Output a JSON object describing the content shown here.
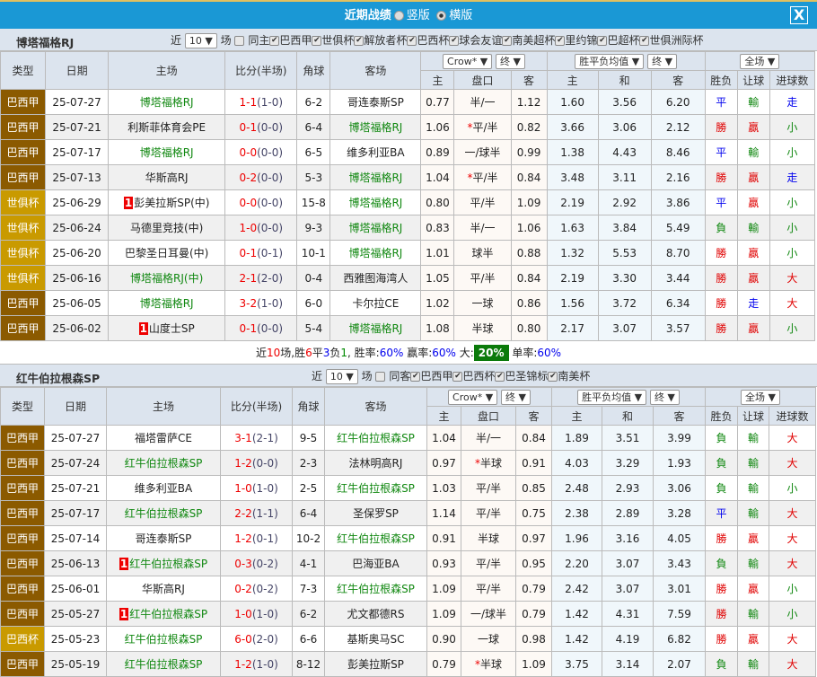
{
  "window": {
    "title": "近期战绩",
    "radio1": "竖版",
    "radio2": "横版",
    "close": "X"
  },
  "colors": {
    "bar": "#1a98d5",
    "league_a": "#8b5a00",
    "league_b": "#c99a00",
    "team": "#118811",
    "win": "#e00000",
    "draw": "#0000ee",
    "lose": "#118811"
  },
  "headers": {
    "type": "类型",
    "date": "日期",
    "home": "主场",
    "score": "比分(半场)",
    "corner": "角球",
    "away": "客场",
    "crow": "Crow*",
    "end": "终",
    "avg": "胜平负均值",
    "full": "全场",
    "h": "主",
    "line": "盘口",
    "a": "客",
    "d": "和",
    "wl": "胜负",
    "hc": "让球",
    "ou": "进球数"
  },
  "sections": [
    {
      "team": "博塔福格RJ",
      "near": "近",
      "count": "10",
      "unit": "场",
      "same": "同主",
      "leagues": [
        "巴西甲",
        "世俱杯",
        "解放者杯",
        "巴西杯",
        "球会友谊",
        "南美超杯",
        "里约锦",
        "巴超杯",
        "世俱洲际杯"
      ],
      "rows": [
        {
          "type": "巴西甲",
          "lt": "a",
          "date": "25-07-27",
          "home": "博塔福格RJ",
          "hh": true,
          "score": "1-1",
          "half": "(1-0)",
          "corner": "6-2",
          "away": "哥连泰斯SP",
          "ah": false,
          "o1": "0.77",
          "line": "半/一",
          "o2": "1.12",
          "e1": "1.60",
          "e2": "3.56",
          "e3": "6.20",
          "wl": "平",
          "hc": "輸",
          "ou": "走"
        },
        {
          "type": "巴西甲",
          "lt": "a",
          "date": "25-07-21",
          "home": "利斯菲体育会PE",
          "hh": false,
          "score": "0-1",
          "half": "(0-0)",
          "corner": "6-4",
          "away": "博塔福格RJ",
          "ah": true,
          "o1": "1.06",
          "line": "平/半",
          "star": true,
          "o2": "0.82",
          "e1": "3.66",
          "e2": "3.06",
          "e3": "2.12",
          "wl": "勝",
          "hc": "贏",
          "ou": "小"
        },
        {
          "type": "巴西甲",
          "lt": "a",
          "date": "25-07-17",
          "home": "博塔福格RJ",
          "hh": true,
          "score": "0-0",
          "half": "(0-0)",
          "corner": "6-5",
          "away": "维多利亚BA",
          "ah": false,
          "o1": "0.89",
          "line": "一/球半",
          "o2": "0.99",
          "e1": "1.38",
          "e2": "4.43",
          "e3": "8.46",
          "wl": "平",
          "hc": "輸",
          "ou": "小"
        },
        {
          "type": "巴西甲",
          "lt": "a",
          "date": "25-07-13",
          "home": "华斯高RJ",
          "hh": false,
          "score": "0-2",
          "half": "(0-0)",
          "corner": "5-3",
          "away": "博塔福格RJ",
          "ah": true,
          "o1": "1.04",
          "line": "平/半",
          "star": true,
          "o2": "0.84",
          "e1": "3.48",
          "e2": "3.11",
          "e3": "2.16",
          "wl": "勝",
          "hc": "贏",
          "ou": "走"
        },
        {
          "type": "世俱杯",
          "lt": "b",
          "date": "25-06-29",
          "home": "彭美拉斯SP(中)",
          "red": "1",
          "hh": false,
          "score": "0-0",
          "half": "(0-0)",
          "corner": "15-8",
          "away": "博塔福格RJ",
          "ah": true,
          "o1": "0.80",
          "line": "平/半",
          "o2": "1.09",
          "e1": "2.19",
          "e2": "2.92",
          "e3": "3.86",
          "wl": "平",
          "hc": "贏",
          "ou": "小"
        },
        {
          "type": "世俱杯",
          "lt": "b",
          "date": "25-06-24",
          "home": "马德里竞技(中)",
          "hh": false,
          "score": "1-0",
          "half": "(0-0)",
          "corner": "9-3",
          "away": "博塔福格RJ",
          "ah": true,
          "o1": "0.83",
          "line": "半/一",
          "o2": "1.06",
          "e1": "1.63",
          "e2": "3.84",
          "e3": "5.49",
          "wl": "負",
          "hc": "輸",
          "ou": "小"
        },
        {
          "type": "世俱杯",
          "lt": "b",
          "date": "25-06-20",
          "home": "巴黎圣日耳曼(中)",
          "hh": false,
          "score": "0-1",
          "half": "(0-1)",
          "corner": "10-1",
          "away": "博塔福格RJ",
          "ah": true,
          "o1": "1.01",
          "line": "球半",
          "o2": "0.88",
          "e1": "1.32",
          "e2": "5.53",
          "e3": "8.70",
          "wl": "勝",
          "hc": "贏",
          "ou": "小"
        },
        {
          "type": "世俱杯",
          "lt": "b",
          "date": "25-06-16",
          "home": "博塔福格RJ(中)",
          "hh": true,
          "score": "2-1",
          "half": "(2-0)",
          "corner": "0-4",
          "away": "西雅图海湾人",
          "ah": false,
          "o1": "1.05",
          "line": "平/半",
          "o2": "0.84",
          "e1": "2.19",
          "e2": "3.30",
          "e3": "3.44",
          "wl": "勝",
          "hc": "贏",
          "ou": "大"
        },
        {
          "type": "巴西甲",
          "lt": "a",
          "date": "25-06-05",
          "home": "博塔福格RJ",
          "hh": true,
          "score": "3-2",
          "half": "(1-0)",
          "corner": "6-0",
          "away": "卡尔拉CE",
          "ah": false,
          "o1": "1.02",
          "line": "一球",
          "o2": "0.86",
          "e1": "1.56",
          "e2": "3.72",
          "e3": "6.34",
          "wl": "勝",
          "hc": "走",
          "ou": "大"
        },
        {
          "type": "巴西甲",
          "lt": "a",
          "date": "25-06-02",
          "home": "山度士SP",
          "red": "1",
          "hh": false,
          "score": "0-1",
          "half": "(0-0)",
          "corner": "5-4",
          "away": "博塔福格RJ",
          "ah": true,
          "o1": "1.08",
          "line": "半球",
          "o2": "0.80",
          "e1": "2.17",
          "e2": "3.07",
          "e3": "3.57",
          "wl": "勝",
          "hc": "贏",
          "ou": "小"
        }
      ],
      "summary": {
        "p1": "近",
        "n": "10",
        "p2": "场,胜",
        "w": "6",
        "p3": "平",
        "d": "3",
        "p4": "负",
        "l": "1",
        "p5": ", 胜率:",
        "wr": "60%",
        "p6": " 赢率:",
        "yr": "60%",
        "p7": " 大:",
        "br": "20%",
        "p8": " 单率:",
        "sr": "60%"
      }
    },
    {
      "team": "红牛伯拉根森SP",
      "near": "近",
      "count": "10",
      "unit": "场",
      "same": "同客",
      "leagues": [
        "巴西甲",
        "巴西杯",
        "巴圣锦标",
        "南美杯"
      ],
      "rows": [
        {
          "type": "巴西甲",
          "lt": "a",
          "date": "25-07-27",
          "home": "福塔雷萨CE",
          "hh": false,
          "score": "3-1",
          "half": "(2-1)",
          "corner": "9-5",
          "away": "红牛伯拉根森SP",
          "ah": true,
          "o1": "1.04",
          "line": "半/一",
          "o2": "0.84",
          "e1": "1.89",
          "e2": "3.51",
          "e3": "3.99",
          "wl": "負",
          "hc": "輸",
          "ou": "大"
        },
        {
          "type": "巴西甲",
          "lt": "a",
          "date": "25-07-24",
          "home": "红牛伯拉根森SP",
          "hh": true,
          "score": "1-2",
          "half": "(0-0)",
          "corner": "2-3",
          "away": "法林明高RJ",
          "ah": false,
          "o1": "0.97",
          "line": "半球",
          "star": true,
          "o2": "0.91",
          "e1": "4.03",
          "e2": "3.29",
          "e3": "1.93",
          "wl": "負",
          "hc": "輸",
          "ou": "大"
        },
        {
          "type": "巴西甲",
          "lt": "a",
          "date": "25-07-21",
          "home": "维多利亚BA",
          "hh": false,
          "score": "1-0",
          "half": "(1-0)",
          "corner": "2-5",
          "away": "红牛伯拉根森SP",
          "ah": true,
          "o1": "1.03",
          "line": "平/半",
          "o2": "0.85",
          "e1": "2.48",
          "e2": "2.93",
          "e3": "3.06",
          "wl": "負",
          "hc": "輸",
          "ou": "小"
        },
        {
          "type": "巴西甲",
          "lt": "a",
          "date": "25-07-17",
          "home": "红牛伯拉根森SP",
          "hh": true,
          "score": "2-2",
          "half": "(1-1)",
          "corner": "6-4",
          "away": "圣保罗SP",
          "ah": false,
          "o1": "1.14",
          "line": "平/半",
          "o2": "0.75",
          "e1": "2.38",
          "e2": "2.89",
          "e3": "3.28",
          "wl": "平",
          "hc": "輸",
          "ou": "大"
        },
        {
          "type": "巴西甲",
          "lt": "a",
          "date": "25-07-14",
          "home": "哥连泰斯SP",
          "hh": false,
          "score": "1-2",
          "half": "(0-1)",
          "corner": "10-2",
          "away": "红牛伯拉根森SP",
          "ah": true,
          "o1": "0.91",
          "line": "半球",
          "o2": "0.97",
          "e1": "1.96",
          "e2": "3.16",
          "e3": "4.05",
          "wl": "勝",
          "hc": "贏",
          "ou": "大"
        },
        {
          "type": "巴西甲",
          "lt": "a",
          "date": "25-06-13",
          "home": "红牛伯拉根森SP",
          "red": "1",
          "hh": true,
          "score": "0-3",
          "half": "(0-2)",
          "corner": "4-1",
          "away": "巴海亚BA",
          "ah": false,
          "o1": "0.93",
          "line": "平/半",
          "o2": "0.95",
          "e1": "2.20",
          "e2": "3.07",
          "e3": "3.43",
          "wl": "負",
          "hc": "輸",
          "ou": "大"
        },
        {
          "type": "巴西甲",
          "lt": "a",
          "date": "25-06-01",
          "home": "华斯高RJ",
          "hh": false,
          "score": "0-2",
          "half": "(0-2)",
          "corner": "7-3",
          "away": "红牛伯拉根森SP",
          "ah": true,
          "o1": "1.09",
          "line": "平/半",
          "o2": "0.79",
          "e1": "2.42",
          "e2": "3.07",
          "e3": "3.01",
          "wl": "勝",
          "hc": "贏",
          "ou": "小"
        },
        {
          "type": "巴西甲",
          "lt": "a",
          "date": "25-05-27",
          "home": "红牛伯拉根森SP",
          "red": "1",
          "hh": true,
          "score": "1-0",
          "half": "(1-0)",
          "corner": "6-2",
          "away": "尤文都德RS",
          "ah": false,
          "o1": "1.09",
          "line": "一/球半",
          "o2": "0.79",
          "e1": "1.42",
          "e2": "4.31",
          "e3": "7.59",
          "wl": "勝",
          "hc": "輸",
          "ou": "小"
        },
        {
          "type": "巴西杯",
          "lt": "b",
          "date": "25-05-23",
          "home": "红牛伯拉根森SP",
          "hh": true,
          "score": "6-0",
          "half": "(2-0)",
          "corner": "6-6",
          "away": "基斯奥马SC",
          "ah": false,
          "o1": "0.90",
          "line": "一球",
          "o2": "0.98",
          "e1": "1.42",
          "e2": "4.19",
          "e3": "6.82",
          "wl": "勝",
          "hc": "贏",
          "ou": "大"
        },
        {
          "type": "巴西甲",
          "lt": "a",
          "date": "25-05-19",
          "home": "红牛伯拉根森SP",
          "hh": true,
          "score": "1-2",
          "half": "(1-0)",
          "corner": "8-12",
          "away": "彭美拉斯SP",
          "ah": false,
          "o1": "0.79",
          "line": "半球",
          "star": true,
          "o2": "1.09",
          "e1": "3.75",
          "e2": "3.14",
          "e3": "2.07",
          "wl": "負",
          "hc": "輸",
          "ou": "大"
        }
      ]
    }
  ]
}
